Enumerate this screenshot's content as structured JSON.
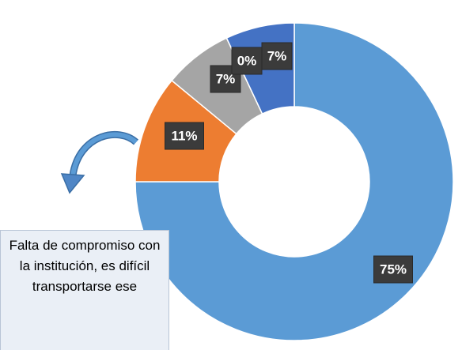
{
  "chart_data": {
    "type": "donut",
    "values": [
      75,
      11,
      7,
      0,
      7
    ],
    "value_labels": [
      "75%",
      "11%",
      "7%",
      "0%",
      "7%"
    ],
    "colors": [
      "#5b9bd5",
      "#ed7d31",
      "#a5a5a5",
      "#ffc000",
      "#4472c4"
    ],
    "annotation": "Falta de compromiso con la institución, es difícil transportarse ese"
  }
}
